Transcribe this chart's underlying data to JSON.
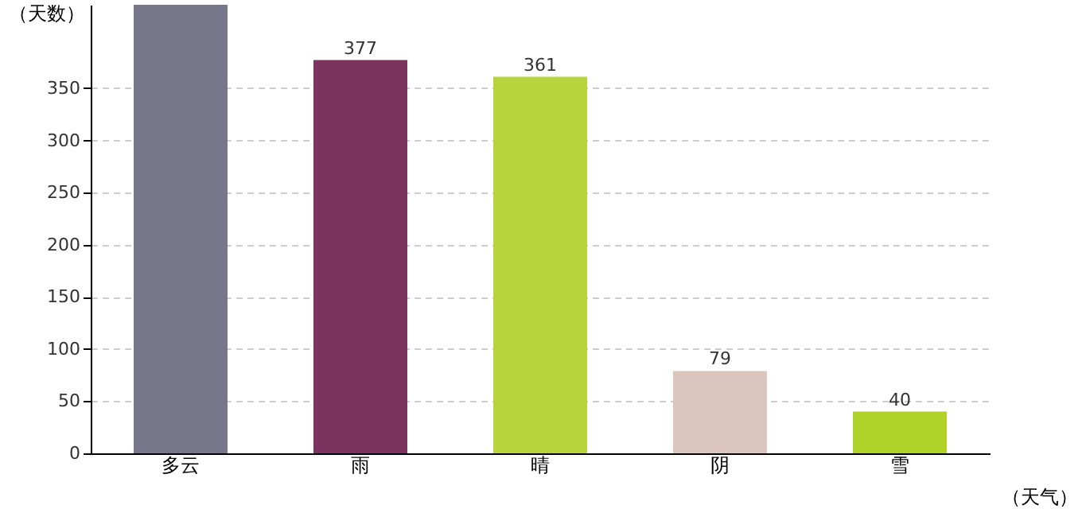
{
  "chart_data": {
    "type": "bar",
    "xlabel": "（天气）",
    "ylabel": "（天数）",
    "categories": [
      "多云",
      "雨",
      "晴",
      "阴",
      "雪"
    ],
    "values": [
      430,
      377,
      361,
      79,
      40
    ],
    "value_labels": [
      null,
      "377",
      "361",
      "79",
      "40"
    ],
    "colors": [
      "#78768a",
      "#7b345f",
      "#b8d43a",
      "#dcc5bf",
      "#b0d127"
    ],
    "ylim": [
      0,
      430
    ],
    "yticks": [
      0,
      50,
      100,
      150,
      200,
      250,
      300,
      350
    ],
    "grid": "y",
    "legend": false
  }
}
